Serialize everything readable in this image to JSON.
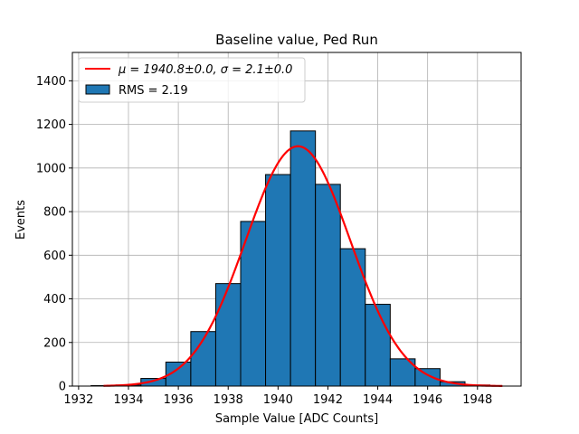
{
  "chart_data": {
    "type": "bar",
    "title": "Baseline value, Ped Run",
    "xlabel": "Sample Value [ADC Counts]",
    "ylabel": "Events",
    "xlim": [
      1931.75,
      1949.75
    ],
    "ylim": [
      0,
      1530
    ],
    "grid": true,
    "xticks": [
      1932,
      1934,
      1936,
      1938,
      1940,
      1942,
      1944,
      1946,
      1948
    ],
    "yticks": [
      0,
      200,
      400,
      600,
      800,
      1000,
      1200,
      1400
    ],
    "bin_width": 1,
    "histogram": {
      "name": "RMS = 2.19",
      "color": "#1f77b4",
      "bin_edges": [
        1932.5,
        1933.5,
        1934.5,
        1935.5,
        1936.5,
        1937.5,
        1938.5,
        1939.5,
        1940.5,
        1941.5,
        1942.5,
        1943.5,
        1944.5,
        1945.5,
        1946.5,
        1947.5,
        1948.5
      ],
      "counts": [
        2,
        5,
        35,
        110,
        250,
        470,
        755,
        970,
        1170,
        925,
        630,
        375,
        125,
        80,
        20,
        5
      ]
    },
    "fit": {
      "name": "μ = 1940.8±0.0, σ = 2.1±0.0",
      "type": "gaussian",
      "mu": 1940.8,
      "sigma": 2.1,
      "amplitude": 1100,
      "x_range": [
        1933,
        1949
      ],
      "color": "#ff0000"
    },
    "legend": {
      "position": "top-left",
      "fit_mu_text": "μ = 1940.8±0.0,",
      "fit_sigma_text": "σ = 2.1±0.0",
      "hist_text": "RMS = 2.19"
    }
  }
}
